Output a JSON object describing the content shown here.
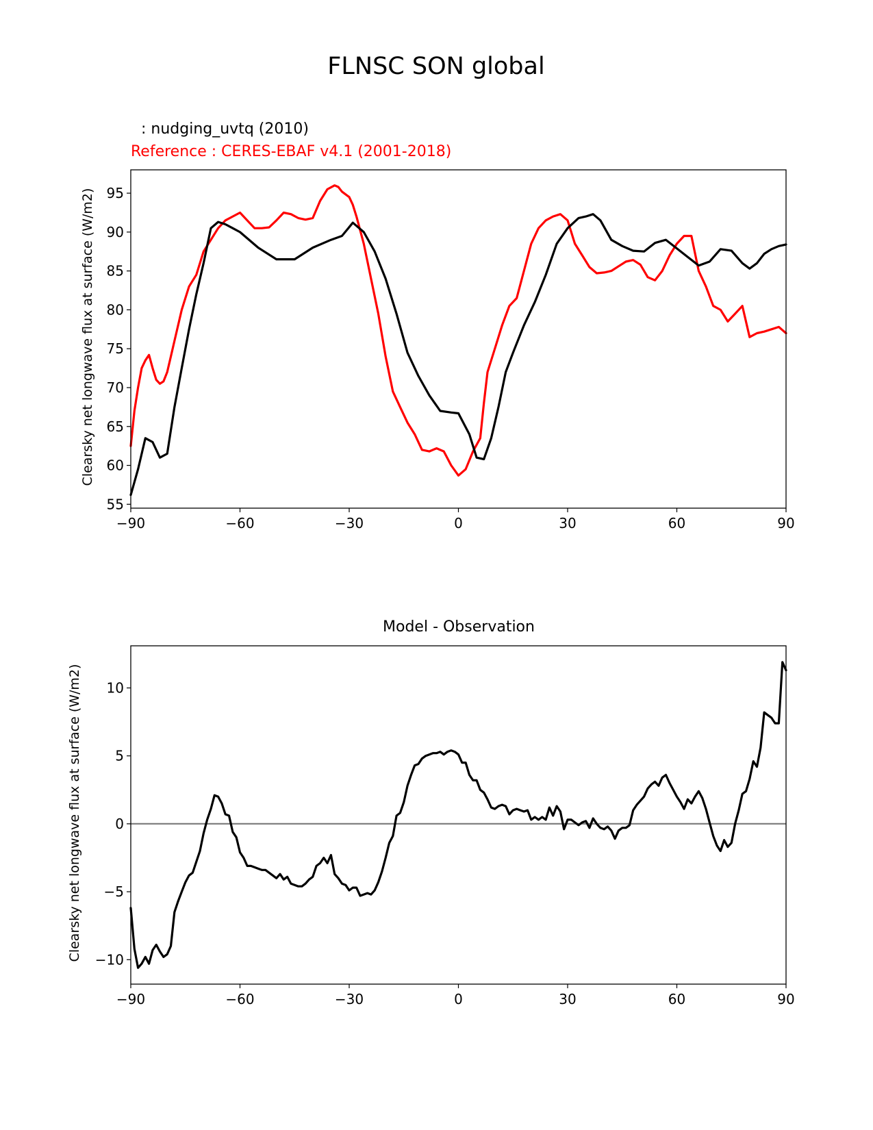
{
  "figure": {
    "suptitle": "FLNSC SON global"
  },
  "chart_data": [
    {
      "type": "line",
      "title_test": ": nudging_uvtq (2010)",
      "title_reference": "Reference : CERES-EBAF v4.1 (2001-2018)",
      "xlabel": "",
      "ylabel": "Clearsky net longwave flux at surface (W/m2)",
      "xlim": [
        -90,
        90
      ],
      "ylim": [
        54.5,
        98
      ],
      "xticks": [
        -90,
        -60,
        -30,
        0,
        30,
        60,
        90
      ],
      "xtick_labels": [
        "−90",
        "−60",
        "−30",
        "0",
        "30",
        "60",
        "90"
      ],
      "yticks": [
        55,
        60,
        65,
        70,
        75,
        80,
        85,
        90,
        95
      ],
      "ytick_labels": [
        "55",
        "60",
        "65",
        "70",
        "75",
        "80",
        "85",
        "90",
        "95"
      ],
      "series": [
        {
          "key": "test",
          "color": "#000000",
          "x": [
            -90,
            -88,
            -86,
            -84,
            -82,
            -80,
            -78,
            -76,
            -74,
            -72,
            -70,
            -68,
            -66,
            -64,
            -62,
            -60,
            -55,
            -50,
            -45,
            -40,
            -35,
            -32,
            -29,
            -26,
            -23,
            -20,
            -17,
            -14,
            -11,
            -8,
            -5,
            -2,
            0,
            3,
            5,
            7,
            9,
            11,
            13,
            15,
            18,
            21,
            24,
            27,
            30,
            33,
            35,
            37,
            39,
            42,
            45,
            48,
            51,
            54,
            57,
            60,
            63,
            66,
            69,
            72,
            75,
            78,
            80,
            82,
            84,
            86,
            88,
            90
          ],
          "y": [
            56.2,
            59.5,
            63.5,
            63.0,
            61.0,
            61.5,
            67.5,
            72.5,
            77.5,
            82.0,
            86.0,
            90.5,
            91.3,
            91.0,
            90.5,
            90.0,
            88.0,
            86.5,
            86.5,
            88.0,
            89.0,
            89.5,
            91.2,
            90.0,
            87.5,
            84.0,
            79.5,
            74.5,
            71.5,
            69.0,
            67.0,
            66.8,
            66.7,
            64.0,
            61.0,
            60.8,
            63.5,
            67.5,
            72.0,
            74.5,
            78.0,
            81.0,
            84.5,
            88.5,
            90.5,
            91.8,
            92.0,
            92.3,
            91.5,
            89.0,
            88.2,
            87.6,
            87.5,
            88.6,
            89.0,
            87.9,
            86.8,
            85.7,
            86.2,
            87.8,
            87.6,
            86.0,
            85.3,
            86.0,
            87.2,
            87.8,
            88.2,
            88.4
          ]
        },
        {
          "key": "reference",
          "color": "#ff0000",
          "x": [
            -90,
            -89,
            -88,
            -87,
            -86,
            -85,
            -84,
            -83,
            -82,
            -81,
            -80,
            -79,
            -78,
            -76,
            -74,
            -72,
            -71,
            -70,
            -68,
            -66,
            -64,
            -62,
            -60,
            -58,
            -56,
            -54,
            -52,
            -50,
            -48,
            -46,
            -44,
            -42,
            -40,
            -38,
            -36,
            -34,
            -33,
            -32,
            -30,
            -29,
            -28,
            -26,
            -24,
            -22,
            -20,
            -18,
            -16,
            -14,
            -12,
            -10,
            -8,
            -6,
            -4,
            -2,
            0,
            2,
            4,
            6,
            7,
            8,
            10,
            12,
            14,
            16,
            18,
            20,
            22,
            24,
            26,
            28,
            30,
            32,
            34,
            36,
            38,
            40,
            42,
            44,
            46,
            48,
            50,
            52,
            54,
            56,
            58,
            60,
            62,
            64,
            66,
            68,
            70,
            72,
            74,
            76,
            78,
            80,
            82,
            84,
            86,
            88,
            90
          ],
          "y": [
            62.5,
            67.0,
            70.0,
            72.5,
            73.5,
            74.2,
            72.5,
            71.0,
            70.5,
            70.8,
            72.0,
            74.0,
            76.0,
            80.0,
            83.0,
            84.5,
            86.0,
            87.5,
            89.0,
            90.5,
            91.5,
            92.0,
            92.5,
            91.5,
            90.5,
            90.5,
            90.6,
            91.5,
            92.5,
            92.3,
            91.8,
            91.6,
            91.8,
            94.0,
            95.5,
            96.0,
            95.8,
            95.2,
            94.5,
            93.5,
            92.0,
            88.5,
            84.0,
            79.5,
            74.0,
            69.5,
            67.5,
            65.5,
            64.0,
            62.0,
            61.8,
            62.2,
            61.8,
            60.0,
            58.7,
            59.5,
            61.8,
            63.5,
            68.0,
            72.0,
            75.0,
            78.0,
            80.5,
            81.5,
            85.0,
            88.5,
            90.5,
            91.5,
            92.0,
            92.3,
            91.5,
            88.5,
            87.0,
            85.5,
            84.7,
            84.8,
            85.0,
            85.6,
            86.2,
            86.4,
            85.8,
            84.2,
            83.8,
            85.0,
            87.0,
            88.5,
            89.5,
            89.5,
            85.0,
            83.0,
            80.5,
            80.0,
            78.5,
            79.5,
            80.5,
            76.5,
            77.0,
            77.2,
            77.5,
            77.8,
            77.0
          ],
          "ylim_note": ""
        }
      ]
    },
    {
      "type": "line",
      "title": "Model - Observation",
      "xlabel": "",
      "ylabel": "Clearsky net longwave flux at surface (W/m2)",
      "xlim": [
        -90,
        90
      ],
      "ylim": [
        -11.8,
        13.1
      ],
      "xticks": [
        -90,
        -60,
        -30,
        0,
        30,
        60,
        90
      ],
      "xtick_labels": [
        "−90",
        "−60",
        "−30",
        "0",
        "30",
        "60",
        "90"
      ],
      "yticks": [
        -10,
        -5,
        0,
        5,
        10
      ],
      "ytick_labels": [
        "−10",
        "−5",
        "0",
        "5",
        "10"
      ],
      "zero_line_color": "#808080",
      "series": [
        {
          "key": "difference",
          "color": "#000000",
          "x": [
            -90,
            -89,
            -88,
            -87,
            -86,
            -85,
            -84,
            -83,
            -82,
            -81,
            -80,
            -79,
            -78,
            -77,
            -76,
            -75,
            -74,
            -73,
            -72,
            -71,
            -70,
            -69,
            -68,
            -67,
            -66,
            -65,
            -64,
            -63,
            -62,
            -61,
            -60,
            -59,
            -58,
            -57,
            -56,
            -55,
            -54,
            -53,
            -52,
            -51,
            -50,
            -49,
            -48,
            -47,
            -46,
            -45,
            -44,
            -43,
            -42,
            -41,
            -40,
            -39,
            -38,
            -37,
            -36,
            -35,
            -34,
            -33,
            -32,
            -31,
            -30,
            -29,
            -28,
            -27,
            -26,
            -25,
            -24,
            -23,
            -22,
            -21,
            -20,
            -19,
            -18,
            -17,
            -16,
            -15,
            -14,
            -13,
            -12,
            -11,
            -10,
            -9,
            -8,
            -7,
            -6,
            -5,
            -4,
            -3,
            -2,
            -1,
            0,
            1,
            2,
            3,
            4,
            5,
            6,
            7,
            8,
            9,
            10,
            11,
            12,
            13,
            14,
            15,
            16,
            17,
            18,
            19,
            20,
            21,
            22,
            23,
            24,
            25,
            26,
            27,
            28,
            29,
            30,
            31,
            32,
            33,
            34,
            35,
            36,
            37,
            38,
            39,
            40,
            41,
            42,
            43,
            44,
            45,
            46,
            47,
            48,
            49,
            50,
            51,
            52,
            53,
            54,
            55,
            56,
            57,
            58,
            59,
            60,
            61,
            62,
            63,
            64,
            65,
            66,
            67,
            68,
            69,
            70,
            71,
            72,
            73,
            74,
            75,
            76,
            77,
            78,
            79,
            80,
            81,
            82,
            83,
            84,
            85,
            86,
            87,
            88,
            89,
            90
          ],
          "y": [
            -6.2,
            -9.2,
            -10.6,
            -10.3,
            -9.8,
            -10.3,
            -9.3,
            -8.9,
            -9.4,
            -9.8,
            -9.6,
            -9.0,
            -6.5,
            -5.7,
            -5.0,
            -4.3,
            -3.8,
            -3.6,
            -2.8,
            -2.0,
            -0.7,
            0.3,
            1.1,
            2.1,
            2.0,
            1.5,
            0.7,
            0.6,
            -0.6,
            -1.0,
            -2.1,
            -2.5,
            -3.1,
            -3.1,
            -3.2,
            -3.3,
            -3.4,
            -3.4,
            -3.6,
            -3.8,
            -4.0,
            -3.7,
            -4.1,
            -3.9,
            -4.4,
            -4.5,
            -4.6,
            -4.6,
            -4.4,
            -4.1,
            -3.9,
            -3.1,
            -2.9,
            -2.5,
            -2.9,
            -2.3,
            -3.7,
            -4.0,
            -4.4,
            -4.5,
            -4.9,
            -4.7,
            -4.7,
            -5.3,
            -5.2,
            -5.1,
            -5.2,
            -4.9,
            -4.3,
            -3.5,
            -2.5,
            -1.4,
            -0.9,
            0.6,
            0.8,
            1.6,
            2.8,
            3.6,
            4.3,
            4.4,
            4.8,
            5.0,
            5.1,
            5.2,
            5.2,
            5.3,
            5.1,
            5.3,
            5.4,
            5.3,
            5.1,
            4.5,
            4.5,
            3.6,
            3.2,
            3.2,
            2.5,
            2.3,
            1.8,
            1.2,
            1.1,
            1.3,
            1.4,
            1.3,
            0.7,
            1.0,
            1.1,
            1.0,
            0.9,
            1.0,
            0.3,
            0.5,
            0.3,
            0.5,
            0.3,
            1.2,
            0.6,
            1.3,
            0.9,
            -0.4,
            0.3,
            0.3,
            0.1,
            -0.1,
            0.1,
            0.2,
            -0.3,
            0.4,
            0.0,
            -0.3,
            -0.4,
            -0.2,
            -0.5,
            -1.1,
            -0.5,
            -0.3,
            -0.3,
            -0.1,
            1.0,
            1.4,
            1.7,
            2.0,
            2.6,
            2.9,
            3.1,
            2.8,
            3.4,
            3.6,
            3.0,
            2.5,
            2.0,
            1.6,
            1.1,
            1.8,
            1.5,
            2.0,
            2.4,
            1.9,
            1.1,
            0.1,
            -0.9,
            -1.6,
            -2.0,
            -1.2,
            -1.7,
            -1.4,
            0.0,
            1.0,
            2.2,
            2.4,
            3.3,
            4.6,
            4.2,
            5.6,
            8.2,
            8.0,
            7.8,
            7.4,
            7.4,
            11.9,
            11.3
          ]
        }
      ]
    }
  ]
}
